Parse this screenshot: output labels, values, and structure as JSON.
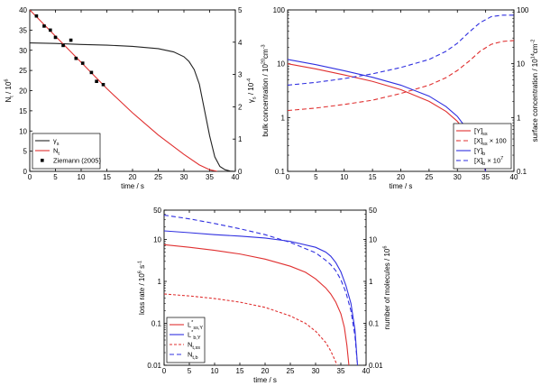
{
  "chart_data": [
    {
      "id": "panel_a",
      "type": "line",
      "xlabel": "time / s",
      "ylabel": {
        "main": "N",
        "sub": "t",
        "rest": " / 10",
        "sup": "6"
      },
      "y2label": {
        "main": "γ",
        "sub": "s",
        "rest": " / 10",
        "sup": "-4"
      },
      "xlim": [
        0,
        40
      ],
      "ylim": [
        0,
        40
      ],
      "y2lim": [
        0,
        5
      ],
      "xticks": [
        0,
        5,
        10,
        15,
        20,
        25,
        30,
        35,
        40
      ],
      "yticks": [
        0,
        5,
        10,
        15,
        20,
        25,
        30,
        35,
        40
      ],
      "y2ticks": [
        0,
        1,
        2,
        3,
        4,
        5
      ],
      "legend_position": "bottom-left",
      "series": [
        {
          "legend": {
            "main": "γ",
            "sub": "s"
          },
          "color": "#222222",
          "dash": "",
          "axis": "right",
          "points": [
            [
              0,
              3.98
            ],
            [
              5,
              3.96
            ],
            [
              10,
              3.93
            ],
            [
              15,
              3.91
            ],
            [
              20,
              3.87
            ],
            [
              25,
              3.8
            ],
            [
              28,
              3.7
            ],
            [
              30,
              3.55
            ],
            [
              31,
              3.4
            ],
            [
              32,
              3.15
            ],
            [
              33,
              2.7
            ],
            [
              34,
              1.9
            ],
            [
              35,
              1.1
            ],
            [
              36,
              0.45
            ],
            [
              37,
              0.15
            ],
            [
              38,
              0.05
            ],
            [
              39,
              0.01
            ],
            [
              40,
              0
            ]
          ]
        },
        {
          "legend": {
            "main": "N",
            "sub": "t"
          },
          "color": "#e03030",
          "dash": "",
          "axis": "left",
          "points": [
            [
              0,
              40
            ],
            [
              2,
              37.4
            ],
            [
              5,
              33.5
            ],
            [
              8,
              29.6
            ],
            [
              10,
              27
            ],
            [
              15,
              20.5
            ],
            [
              20,
              14.5
            ],
            [
              25,
              9.0
            ],
            [
              30,
              4.2
            ],
            [
              33,
              1.6
            ],
            [
              35,
              0.4
            ],
            [
              36.5,
              0
            ]
          ]
        },
        {
          "legend": {
            "main": "Ziemann (2005)",
            "sub": ""
          },
          "color": "#000000",
          "marker": "square",
          "axis": "left",
          "points": [
            [
              1.3,
              38.5
            ],
            [
              2.8,
              36
            ],
            [
              4,
              35
            ],
            [
              5,
              33.2
            ],
            [
              6.5,
              31.2
            ],
            [
              8,
              32.5
            ],
            [
              9,
              28
            ],
            [
              10.3,
              26.8
            ],
            [
              12,
              24.5
            ],
            [
              13,
              22.3
            ],
            [
              14.3,
              21.5
            ]
          ]
        }
      ]
    },
    {
      "id": "panel_b",
      "type": "line",
      "xlabel": "time / s",
      "ylabel": {
        "text": "bulk concentration / 10",
        "sup": "20",
        "rest": "cm",
        "sup2": "-3"
      },
      "y2label": {
        "text": "surface concentration / 10",
        "sup": "14",
        "rest": "cm",
        "sup2": "-2"
      },
      "xlim": [
        0,
        40
      ],
      "ylim": [
        0.1,
        100
      ],
      "yscale": "log",
      "y2lim": [
        0.1,
        100
      ],
      "y2scale": "log",
      "xticks": [
        0,
        5,
        10,
        15,
        20,
        25,
        30,
        35,
        40
      ],
      "yticks": [
        0.1,
        1,
        10,
        100
      ],
      "yticklabels": [
        "0.1",
        "1",
        "10",
        "100"
      ],
      "y2ticks": [
        0.1,
        1,
        10,
        100
      ],
      "y2ticklabels": [
        "0.1",
        "1",
        "10",
        "100"
      ],
      "legend_position": "bottom-right",
      "series": [
        {
          "legend": {
            "main": "[Y]",
            "sub": "ss",
            "extra": ""
          },
          "color": "#e03030",
          "dash": "",
          "points": [
            [
              0,
              10
            ],
            [
              5,
              8.0
            ],
            [
              10,
              6.2
            ],
            [
              15,
              4.7
            ],
            [
              20,
              3.3
            ],
            [
              25,
              2.0
            ],
            [
              28,
              1.3
            ],
            [
              30,
              0.85
            ],
            [
              32,
              0.45
            ],
            [
              33,
              0.3
            ],
            [
              34,
              0.18
            ],
            [
              34.6,
              0.13
            ],
            [
              35,
              0.1
            ]
          ]
        },
        {
          "legend": {
            "main": "[X]",
            "sub": "ss",
            "extra": " × 100"
          },
          "color": "#e03030",
          "dash": "5,3",
          "points": [
            [
              0,
              1.35
            ],
            [
              5,
              1.5
            ],
            [
              10,
              1.75
            ],
            [
              15,
              2.1
            ],
            [
              20,
              2.8
            ],
            [
              25,
              4.0
            ],
            [
              28,
              5.5
            ],
            [
              30,
              7.5
            ],
            [
              32,
              11
            ],
            [
              34,
              17
            ],
            [
              36,
              23
            ],
            [
              38,
              26
            ],
            [
              40,
              27
            ]
          ]
        },
        {
          "legend": {
            "main": "[Y]",
            "sub": "b",
            "extra": ""
          },
          "color": "#3030e0",
          "dash": "",
          "points": [
            [
              0,
              12
            ],
            [
              5,
              9.6
            ],
            [
              10,
              7.4
            ],
            [
              15,
              5.6
            ],
            [
              20,
              4.0
            ],
            [
              25,
              2.5
            ],
            [
              28,
              1.6
            ],
            [
              30,
              1.05
            ],
            [
              32,
              0.55
            ],
            [
              33,
              0.35
            ],
            [
              34,
              0.2
            ],
            [
              34.6,
              0.14
            ],
            [
              35,
              0.1
            ]
          ]
        },
        {
          "legend": {
            "main": "[X]",
            "sub": "b",
            "extra": " × 10",
            "sup": "7"
          },
          "color": "#3030e0",
          "dash": "5,3",
          "points": [
            [
              0,
              4.0
            ],
            [
              5,
              4.5
            ],
            [
              10,
              5.3
            ],
            [
              15,
              6.5
            ],
            [
              20,
              8.5
            ],
            [
              25,
              12
            ],
            [
              28,
              17
            ],
            [
              30,
              24
            ],
            [
              32,
              38
            ],
            [
              34,
              58
            ],
            [
              36,
              75
            ],
            [
              38,
              80
            ],
            [
              40,
              80
            ]
          ]
        }
      ]
    },
    {
      "id": "panel_c",
      "type": "line",
      "xlabel": "time / s",
      "ylabel": {
        "text": "loss rate / 10",
        "sup": "6",
        "rest": " s",
        "sup2": "-1"
      },
      "y2label": {
        "text": "number of molecules / 10",
        "sup": "6"
      },
      "xlim": [
        0,
        40
      ],
      "ylim": [
        0.01,
        50
      ],
      "yscale": "log",
      "y2lim": [
        0.01,
        50
      ],
      "y2scale": "log",
      "xticks": [
        0,
        5,
        10,
        15,
        20,
        25,
        30,
        35,
        40
      ],
      "yticks": [
        0.01,
        0.1,
        1,
        10,
        50
      ],
      "yticklabels": [
        "0.01",
        "0.1",
        "1",
        "10",
        "50"
      ],
      "y2ticks": [
        0.01,
        0.1,
        1,
        10,
        50
      ],
      "y2ticklabels": [
        "0.01",
        "0.1",
        "1",
        "10",
        "50"
      ],
      "legend_position": "bottom-left",
      "series": [
        {
          "legend": {
            "main": "L",
            "sup": "*",
            "sub": "ss,Y"
          },
          "color": "#e03030",
          "dash": "",
          "points": [
            [
              0,
              7.5
            ],
            [
              5,
              6.5
            ],
            [
              10,
              5.5
            ],
            [
              15,
              4.5
            ],
            [
              20,
              3.4
            ],
            [
              25,
              2.3
            ],
            [
              28,
              1.65
            ],
            [
              30,
              1.15
            ],
            [
              32,
              0.7
            ],
            [
              33,
              0.5
            ],
            [
              34,
              0.32
            ],
            [
              35,
              0.17
            ],
            [
              35.7,
              0.08
            ],
            [
              36.2,
              0.03
            ],
            [
              36.6,
              0.01
            ]
          ]
        },
        {
          "legend": {
            "main": "L",
            "sup": "*",
            "sub": "b,Y"
          },
          "color": "#3030e0",
          "dash": "",
          "points": [
            [
              0,
              16
            ],
            [
              5,
              14.5
            ],
            [
              10,
              13
            ],
            [
              15,
              12
            ],
            [
              20,
              10.8
            ],
            [
              25,
              9.0
            ],
            [
              30,
              6.5
            ],
            [
              32,
              5.0
            ],
            [
              33,
              4.0
            ],
            [
              34,
              2.8
            ],
            [
              35,
              1.7
            ],
            [
              36,
              0.8
            ],
            [
              37,
              0.3
            ],
            [
              37.8,
              0.07
            ],
            [
              38.3,
              0.01
            ]
          ]
        },
        {
          "legend": {
            "main": "N",
            "sup": "",
            "sub": "t,ss"
          },
          "color": "#e03030",
          "dash": "3,2",
          "points": [
            [
              0,
              0.5
            ],
            [
              5,
              0.45
            ],
            [
              10,
              0.39
            ],
            [
              15,
              0.32
            ],
            [
              20,
              0.24
            ],
            [
              25,
              0.15
            ],
            [
              28,
              0.1
            ],
            [
              30,
              0.065
            ],
            [
              32,
              0.035
            ],
            [
              33,
              0.022
            ],
            [
              34,
              0.012
            ],
            [
              34.5,
              0.008
            ]
          ]
        },
        {
          "legend": {
            "main": "N",
            "sup": "",
            "sub": "t,b"
          },
          "color": "#3030e0",
          "dash": "5,3",
          "points": [
            [
              0,
              38
            ],
            [
              5,
              31
            ],
            [
              10,
              24
            ],
            [
              15,
              18
            ],
            [
              20,
              13
            ],
            [
              25,
              8.5
            ],
            [
              30,
              4.8
            ],
            [
              32,
              3.2
            ],
            [
              33,
              2.5
            ],
            [
              34,
              1.8
            ],
            [
              35,
              1.1
            ],
            [
              36,
              0.55
            ],
            [
              37,
              0.2
            ],
            [
              37.8,
              0.05
            ],
            [
              38.3,
              0.01
            ]
          ]
        }
      ]
    }
  ]
}
